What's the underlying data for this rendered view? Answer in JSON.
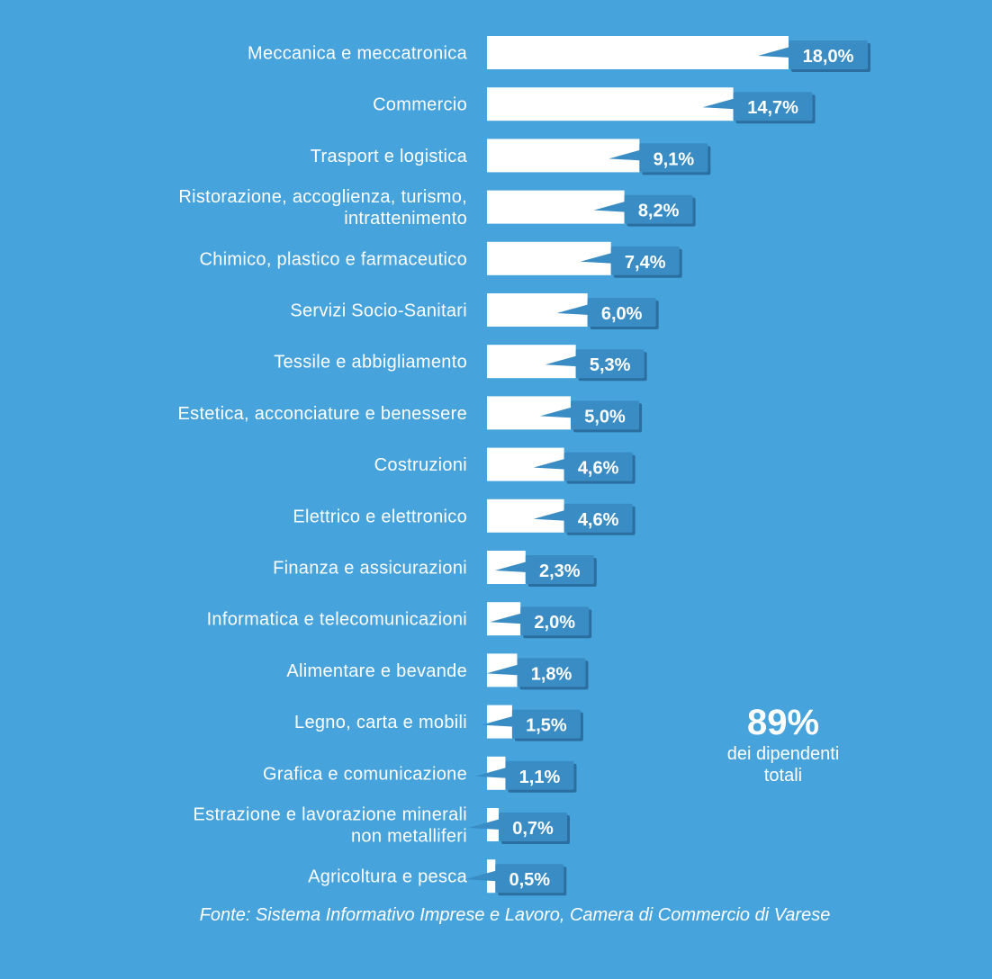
{
  "chart_data": {
    "type": "bar",
    "orientation": "horizontal",
    "categories": [
      [
        "Meccanica e meccatronica"
      ],
      [
        "Commercio"
      ],
      [
        "Trasport e logistica"
      ],
      [
        "Ristorazione, accoglienza, turismo,",
        "intrattenimento"
      ],
      [
        "Chimico, plastico e farmaceutico"
      ],
      [
        "Servizi Socio-Sanitari"
      ],
      [
        "Tessile e abbigliamento"
      ],
      [
        "Estetica, acconciature e benessere"
      ],
      [
        "Costruzioni"
      ],
      [
        "Elettrico e elettronico"
      ],
      [
        "Finanza e assicurazioni"
      ],
      [
        "Informatica e telecomunicazioni"
      ],
      [
        "Alimentare e bevande"
      ],
      [
        "Legno, carta e mobili"
      ],
      [
        "Grafica e comunicazione"
      ],
      [
        "Estrazione e lavorazione minerali",
        "non metalliferi"
      ],
      [
        "Agricoltura e pesca"
      ]
    ],
    "values": [
      18.0,
      14.7,
      9.1,
      8.2,
      7.4,
      6.0,
      5.3,
      5.0,
      4.6,
      4.6,
      2.3,
      2.0,
      1.8,
      1.5,
      1.1,
      0.7,
      0.5
    ],
    "value_labels": [
      "18,0%",
      "14,7%",
      "9,1%",
      "8,2%",
      "7,4%",
      "6,0%",
      "5,3%",
      "5,0%",
      "4,6%",
      "4,6%",
      "2,3%",
      "2,0%",
      "1,8%",
      "1,5%",
      "1,1%",
      "0,7%",
      "0,5%"
    ],
    "xlim": [
      0,
      18.0
    ],
    "grid": false,
    "colors": {
      "background": "#46a3dc",
      "bar": "#ffffff",
      "value_box": "#3a8cc4",
      "value_box_shadow": "#2a6f9f"
    }
  },
  "summary": {
    "value": "89%",
    "line1": "dei dipendenti",
    "line2": "totali"
  },
  "source": "Fonte: Sistema Informativo Imprese e Lavoro, Camera di Commercio di Varese"
}
